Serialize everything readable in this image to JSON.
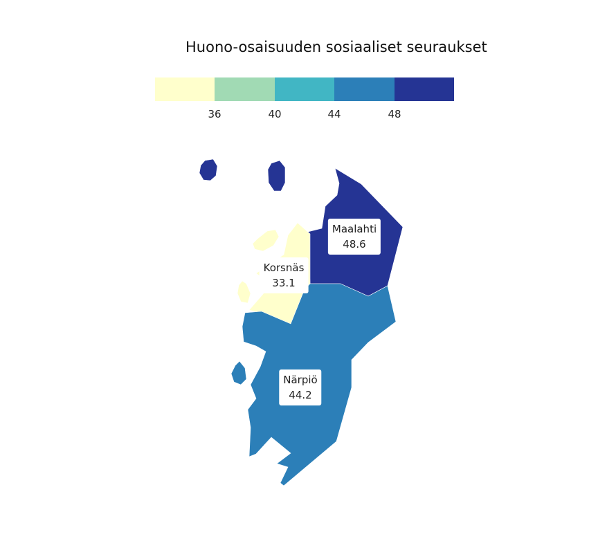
{
  "title": "Huono-osaisuuden sosiaaliset seuraukset",
  "legend": {
    "colors": [
      "#ffffcc",
      "#a1dab4",
      "#41b6c4",
      "#2c7fb8",
      "#253494"
    ],
    "breaks": [
      "36",
      "40",
      "44",
      "48"
    ]
  },
  "regions": [
    {
      "name": "Maalahti",
      "value": "48.6",
      "color": "#253494"
    },
    {
      "name": "Korsnäs",
      "value": "33.1",
      "color": "#ffffcc"
    },
    {
      "name": "Närpiö",
      "value": "44.2",
      "color": "#2c7fb8"
    }
  ]
}
